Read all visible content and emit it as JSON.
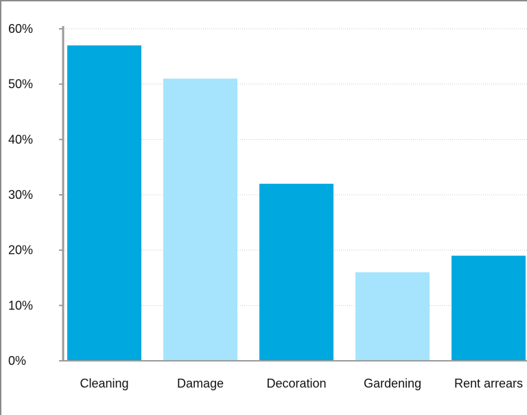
{
  "chart_data": {
    "type": "bar",
    "title": "",
    "xlabel": "",
    "ylabel": "",
    "categories": [
      "Cleaning",
      "Damage",
      "Decoration",
      "Gardening",
      "Rent arrears"
    ],
    "values": [
      57,
      51,
      32,
      16,
      19
    ],
    "value_unit": "%",
    "ylim": [
      0,
      60
    ],
    "yticks": [
      "0%",
      "10%",
      "20%",
      "30%",
      "40%",
      "50%",
      "60%"
    ],
    "grid": true,
    "legend": "none",
    "colors": {
      "dark": "#00a8e0",
      "light": "#a5e4fc",
      "grid": "#c8c8c8",
      "axis": "#9a9a9a"
    },
    "bar_color_pattern": [
      "dark",
      "light",
      "dark",
      "light",
      "dark"
    ]
  }
}
